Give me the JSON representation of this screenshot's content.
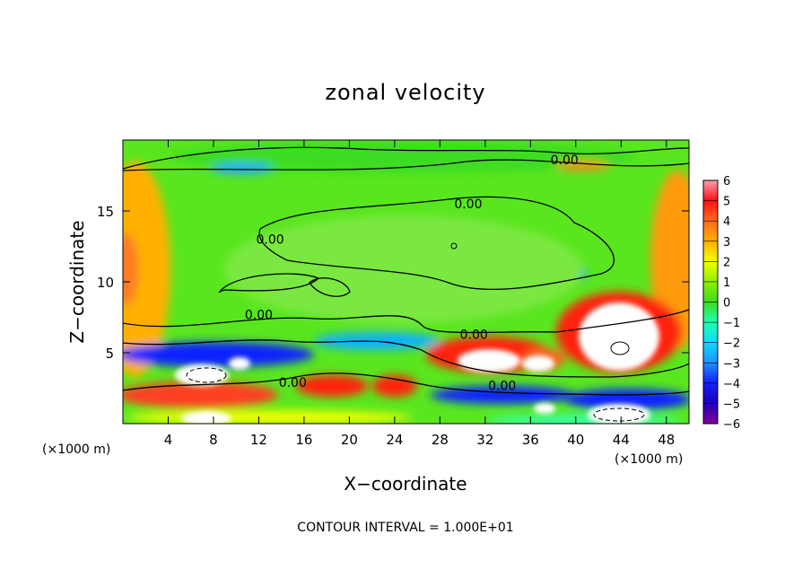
{
  "chart_data": {
    "type": "heatmap",
    "title": "zonal velocity",
    "xlabel": "X−coordinate",
    "ylabel": "Z−coordinate",
    "x_unit": "(×1000 m)",
    "z_unit": "(×1000 m)",
    "xlim": [
      0,
      50
    ],
    "ylim": [
      0,
      20
    ],
    "x_ticks": [
      "4",
      "8",
      "12",
      "16",
      "20",
      "24",
      "28",
      "32",
      "36",
      "40",
      "44",
      "48"
    ],
    "y_ticks": [
      "5",
      "10",
      "15"
    ],
    "colorbar": {
      "min": -6,
      "max": 6,
      "labels": [
        "6",
        "5",
        "4",
        "3",
        "2",
        "1",
        "0",
        "−1",
        "−2",
        "−3",
        "−4",
        "−5",
        "−6"
      ],
      "colors": [
        "#ff9fb0",
        "#ff1010",
        "#ff6a1e",
        "#ffb000",
        "#f0ff00",
        "#90f000",
        "#3ddc20",
        "#20ffb0",
        "#10d8ff",
        "#2090ff",
        "#1020ff",
        "#2000b0",
        "#8000a0"
      ]
    },
    "contour_labels": [
      {
        "text": "0.00",
        "x": 39,
        "z": 18.6
      },
      {
        "text": "0.00",
        "x": 30.5,
        "z": 15.5
      },
      {
        "text": "0.00",
        "x": 13,
        "z": 13
      },
      {
        "text": "0.00",
        "x": 12,
        "z": 7.7
      },
      {
        "text": "0.00",
        "x": 31,
        "z": 6.3
      },
      {
        "text": "0.00",
        "x": 15,
        "z": 2.9
      },
      {
        "text": "0.00",
        "x": 33.5,
        "z": 2.7
      }
    ],
    "footer": "CONTOUR INTERVAL = 1.000E+01"
  }
}
